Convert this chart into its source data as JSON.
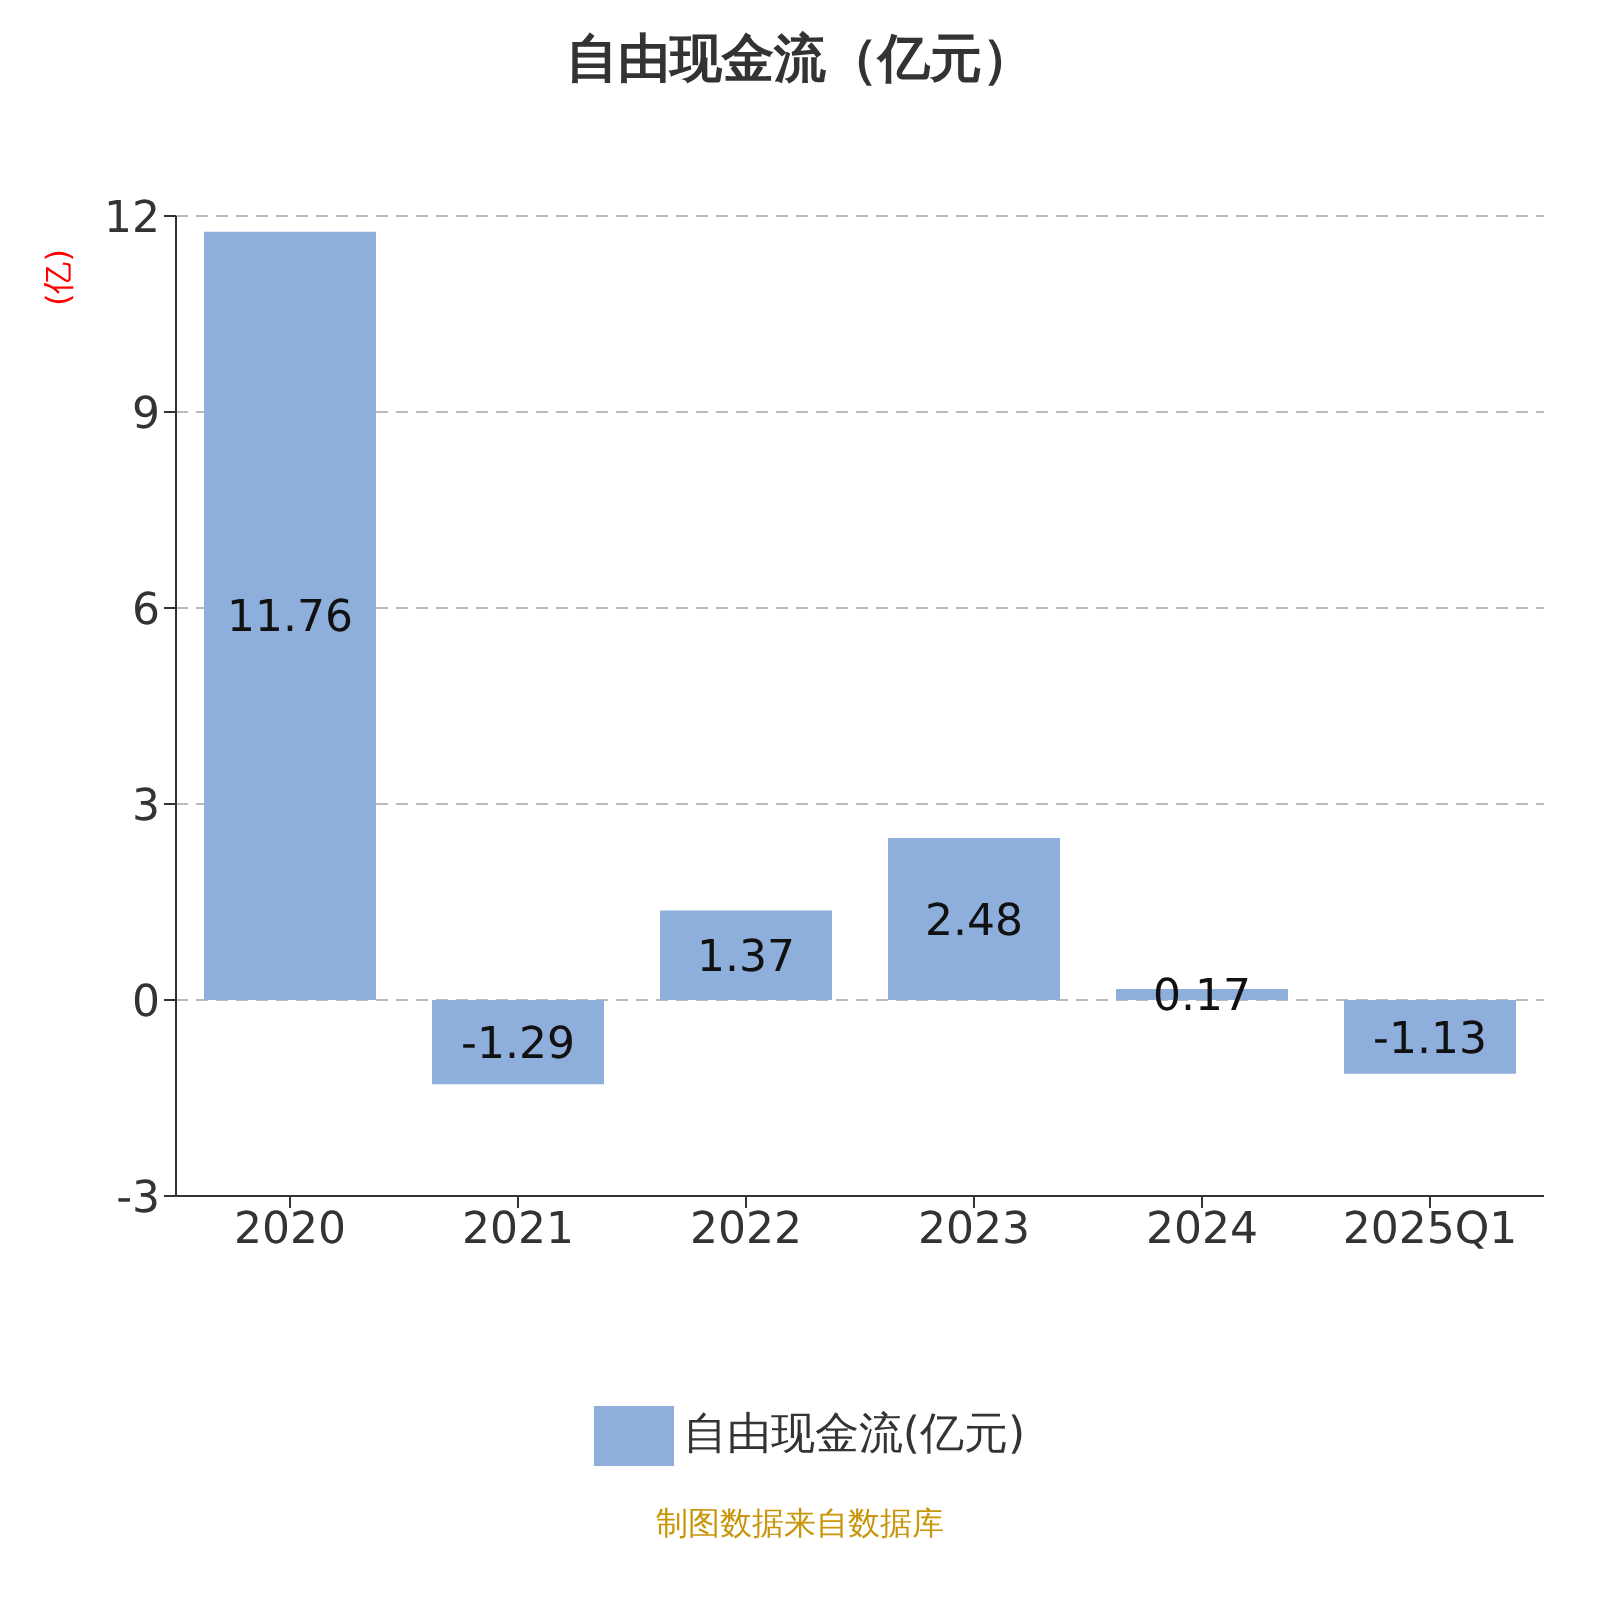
{
  "chart_data": {
    "type": "bar",
    "title": "自由现金流（亿元）",
    "ylabel": "(亿)",
    "categories": [
      "2020",
      "2021",
      "2022",
      "2023",
      "2024",
      "2025Q1"
    ],
    "series": [
      {
        "name": "自由现金流(亿元)",
        "color": "#8eaedb",
        "values": [
          11.76,
          -1.29,
          1.37,
          2.48,
          0.17,
          -1.13
        ]
      }
    ],
    "ylim": [
      -3,
      12
    ],
    "yticks": [
      -3,
      0,
      3,
      6,
      9,
      12
    ],
    "grid": "y",
    "data_labels": true,
    "legend": "bottom",
    "annotations": [
      "制图数据来自数据库"
    ]
  }
}
